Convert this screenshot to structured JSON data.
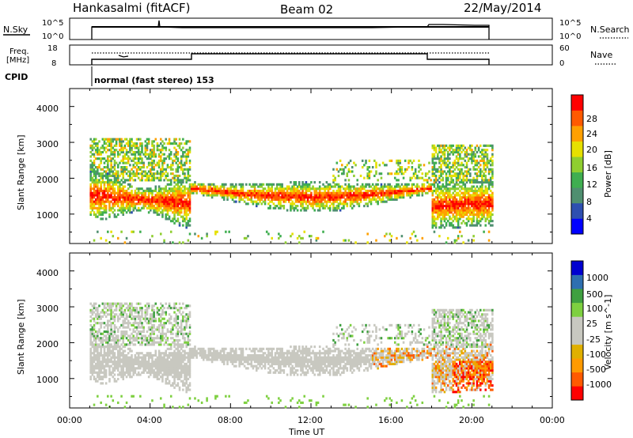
{
  "header": {
    "station": "Hankasalmi (fitACF)",
    "beam": "Beam 02",
    "date": "22/May/2014"
  },
  "top_panel": {
    "left_label": "N.Sky",
    "right_label": "N.Search",
    "left_ticks": [
      "10^5",
      "10^0"
    ],
    "right_ticks": [
      "10^5",
      "10^0"
    ]
  },
  "freq_panel": {
    "left_label_1": "Freq.",
    "left_label_2": "[MHz]",
    "left_ticks": [
      "18",
      "8"
    ],
    "right_ticks": [
      "60",
      "0"
    ],
    "right_label": "Nave"
  },
  "cpid": {
    "label": "CPID",
    "program": "normal (fast stereo) 153"
  },
  "colors": {
    "power": [
      "#0000ff",
      "#2e4fb0",
      "#4f8f70",
      "#3fae50",
      "#8fce30",
      "#e6e000",
      "#ffa000",
      "#ff5a00",
      "#ff0000"
    ],
    "velocity": [
      "#ff0000",
      "#ff5a00",
      "#ff9a00",
      "#e0b000",
      "#c8c8c0",
      "#c8c8c0",
      "#7ed040",
      "#3fa040",
      "#2e6fb0",
      "#0000d0"
    ]
  },
  "chart_data": {
    "type": "heatmap",
    "xlabel": "Time UT",
    "x_ticks": [
      "00:00",
      "04:00",
      "08:00",
      "12:00",
      "16:00",
      "20:00",
      "00:00"
    ],
    "xlim": [
      0,
      24
    ],
    "ylabel": "Slant Range [km]",
    "y_ticks": [
      "1000",
      "2000",
      "3000",
      "4000"
    ],
    "ylim": [
      180,
      4500
    ],
    "observation_window_ut": [
      1.0,
      21.0
    ],
    "power_colorbar": {
      "label": "Power [dB]",
      "ticks": [
        "4",
        "8",
        "12",
        "16",
        "20",
        "24",
        "28"
      ]
    },
    "velocity_colorbar": {
      "label": "Velocity [m s^-1]",
      "ticks": [
        "1000",
        "500",
        "100",
        "25",
        "-25",
        "-100",
        "-500",
        "-1000"
      ]
    }
  }
}
